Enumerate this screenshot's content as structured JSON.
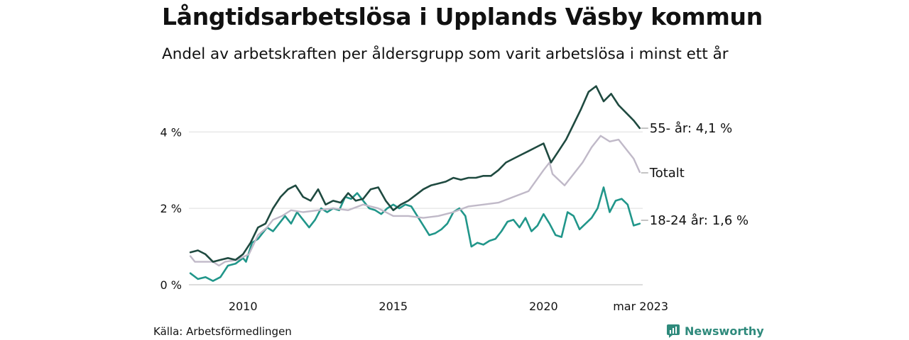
{
  "title": "Långtidsarbetslösa i Upplands Väsby kommun",
  "subtitle": "Andel av arbetskraften per åldersgrupp som varit arbetslösa i minst ett år",
  "source": "Källa: Arbetsförmedlingen",
  "brand": "Newsworthy",
  "colors": {
    "s55": "#1f4a40",
    "total": "#c0b9c8",
    "s1824": "#21968a",
    "grid": "#dddddd",
    "text": "#111111"
  },
  "chart_data": {
    "type": "line",
    "ylim": [
      0,
      5.6
    ],
    "xlim": [
      2008.2,
      2023.3
    ],
    "y_ticks": [
      0,
      2,
      4
    ],
    "y_tick_labels": [
      "0 %",
      "2 %",
      "4 %"
    ],
    "x_ticks": [
      2010,
      2015,
      2020,
      2023.2
    ],
    "x_tick_labels": [
      "2010",
      "2015",
      "2020",
      "mar 2023"
    ],
    "grid": "horizontal",
    "series": [
      {
        "key": "s1824",
        "name": "18-24 år",
        "end_label": "18-24 år: 1,6 %",
        "points": [
          [
            2008.25,
            0.3
          ],
          [
            2008.5,
            0.15
          ],
          [
            2008.75,
            0.2
          ],
          [
            2009.0,
            0.1
          ],
          [
            2009.25,
            0.2
          ],
          [
            2009.5,
            0.5
          ],
          [
            2009.75,
            0.55
          ],
          [
            2010.0,
            0.7
          ],
          [
            2010.1,
            0.6
          ],
          [
            2010.3,
            1.1
          ],
          [
            2010.5,
            1.2
          ],
          [
            2010.8,
            1.5
          ],
          [
            2011.0,
            1.4
          ],
          [
            2011.2,
            1.6
          ],
          [
            2011.4,
            1.8
          ],
          [
            2011.6,
            1.6
          ],
          [
            2011.8,
            1.9
          ],
          [
            2012.0,
            1.7
          ],
          [
            2012.2,
            1.5
          ],
          [
            2012.4,
            1.7
          ],
          [
            2012.6,
            2.0
          ],
          [
            2012.8,
            1.9
          ],
          [
            2013.0,
            2.0
          ],
          [
            2013.2,
            1.95
          ],
          [
            2013.4,
            2.3
          ],
          [
            2013.6,
            2.25
          ],
          [
            2013.8,
            2.4
          ],
          [
            2014.0,
            2.2
          ],
          [
            2014.2,
            2.0
          ],
          [
            2014.4,
            1.95
          ],
          [
            2014.6,
            1.85
          ],
          [
            2014.8,
            2.0
          ],
          [
            2015.0,
            2.1
          ],
          [
            2015.2,
            2.0
          ],
          [
            2015.4,
            2.1
          ],
          [
            2015.6,
            2.05
          ],
          [
            2015.8,
            1.8
          ],
          [
            2016.0,
            1.55
          ],
          [
            2016.2,
            1.3
          ],
          [
            2016.4,
            1.35
          ],
          [
            2016.6,
            1.45
          ],
          [
            2016.8,
            1.6
          ],
          [
            2017.0,
            1.9
          ],
          [
            2017.2,
            2.0
          ],
          [
            2017.4,
            1.8
          ],
          [
            2017.6,
            1.0
          ],
          [
            2017.8,
            1.1
          ],
          [
            2018.0,
            1.05
          ],
          [
            2018.2,
            1.15
          ],
          [
            2018.4,
            1.2
          ],
          [
            2018.6,
            1.4
          ],
          [
            2018.8,
            1.65
          ],
          [
            2019.0,
            1.7
          ],
          [
            2019.2,
            1.5
          ],
          [
            2019.4,
            1.75
          ],
          [
            2019.6,
            1.4
          ],
          [
            2019.8,
            1.55
          ],
          [
            2020.0,
            1.85
          ],
          [
            2020.2,
            1.6
          ],
          [
            2020.4,
            1.3
          ],
          [
            2020.6,
            1.25
          ],
          [
            2020.8,
            1.9
          ],
          [
            2021.0,
            1.8
          ],
          [
            2021.2,
            1.45
          ],
          [
            2021.4,
            1.6
          ],
          [
            2021.6,
            1.75
          ],
          [
            2021.8,
            2.0
          ],
          [
            2022.0,
            2.55
          ],
          [
            2022.2,
            1.9
          ],
          [
            2022.4,
            2.2
          ],
          [
            2022.6,
            2.25
          ],
          [
            2022.8,
            2.1
          ],
          [
            2023.0,
            1.55
          ],
          [
            2023.2,
            1.6
          ]
        ]
      },
      {
        "key": "total",
        "name": "Totalt",
        "end_label": "Totalt",
        "points": [
          [
            2008.25,
            0.75
          ],
          [
            2008.4,
            0.6
          ],
          [
            2009.0,
            0.6
          ],
          [
            2009.2,
            0.5
          ],
          [
            2009.4,
            0.6
          ],
          [
            2009.8,
            0.65
          ],
          [
            2010.2,
            0.8
          ],
          [
            2010.5,
            1.3
          ],
          [
            2010.8,
            1.5
          ],
          [
            2011.0,
            1.7
          ],
          [
            2011.3,
            1.8
          ],
          [
            2011.6,
            1.95
          ],
          [
            2012.0,
            1.9
          ],
          [
            2012.5,
            1.95
          ],
          [
            2013.0,
            2.0
          ],
          [
            2013.5,
            1.95
          ],
          [
            2014.0,
            2.1
          ],
          [
            2014.5,
            2.0
          ],
          [
            2015.0,
            1.8
          ],
          [
            2015.5,
            1.8
          ],
          [
            2016.0,
            1.75
          ],
          [
            2016.5,
            1.8
          ],
          [
            2017.0,
            1.9
          ],
          [
            2017.5,
            2.05
          ],
          [
            2018.0,
            2.1
          ],
          [
            2018.5,
            2.15
          ],
          [
            2019.0,
            2.3
          ],
          [
            2019.5,
            2.45
          ],
          [
            2020.0,
            3.0
          ],
          [
            2020.2,
            3.2
          ],
          [
            2020.3,
            2.9
          ],
          [
            2020.5,
            2.75
          ],
          [
            2020.7,
            2.6
          ],
          [
            2021.0,
            2.9
          ],
          [
            2021.3,
            3.2
          ],
          [
            2021.6,
            3.6
          ],
          [
            2021.9,
            3.9
          ],
          [
            2022.2,
            3.75
          ],
          [
            2022.5,
            3.8
          ],
          [
            2022.8,
            3.5
          ],
          [
            2023.0,
            3.3
          ],
          [
            2023.2,
            2.95
          ]
        ]
      },
      {
        "key": "s55",
        "name": "55- år",
        "end_label": "55- år: 4,1 %",
        "points": [
          [
            2008.25,
            0.85
          ],
          [
            2008.5,
            0.9
          ],
          [
            2008.75,
            0.8
          ],
          [
            2009.0,
            0.6
          ],
          [
            2009.25,
            0.65
          ],
          [
            2009.5,
            0.7
          ],
          [
            2009.75,
            0.65
          ],
          [
            2010.0,
            0.8
          ],
          [
            2010.25,
            1.1
          ],
          [
            2010.5,
            1.5
          ],
          [
            2010.75,
            1.6
          ],
          [
            2011.0,
            2.0
          ],
          [
            2011.25,
            2.3
          ],
          [
            2011.5,
            2.5
          ],
          [
            2011.75,
            2.6
          ],
          [
            2012.0,
            2.3
          ],
          [
            2012.25,
            2.2
          ],
          [
            2012.5,
            2.5
          ],
          [
            2012.75,
            2.1
          ],
          [
            2013.0,
            2.2
          ],
          [
            2013.25,
            2.15
          ],
          [
            2013.5,
            2.4
          ],
          [
            2013.75,
            2.2
          ],
          [
            2014.0,
            2.25
          ],
          [
            2014.25,
            2.5
          ],
          [
            2014.5,
            2.55
          ],
          [
            2014.75,
            2.2
          ],
          [
            2015.0,
            1.95
          ],
          [
            2015.25,
            2.1
          ],
          [
            2015.5,
            2.2
          ],
          [
            2015.75,
            2.35
          ],
          [
            2016.0,
            2.5
          ],
          [
            2016.25,
            2.6
          ],
          [
            2016.5,
            2.65
          ],
          [
            2016.75,
            2.7
          ],
          [
            2017.0,
            2.8
          ],
          [
            2017.25,
            2.75
          ],
          [
            2017.5,
            2.8
          ],
          [
            2017.75,
            2.8
          ],
          [
            2018.0,
            2.85
          ],
          [
            2018.25,
            2.85
          ],
          [
            2018.5,
            3.0
          ],
          [
            2018.75,
            3.2
          ],
          [
            2019.0,
            3.3
          ],
          [
            2019.25,
            3.4
          ],
          [
            2019.5,
            3.5
          ],
          [
            2019.75,
            3.6
          ],
          [
            2020.0,
            3.7
          ],
          [
            2020.25,
            3.2
          ],
          [
            2020.5,
            3.5
          ],
          [
            2020.75,
            3.8
          ],
          [
            2021.0,
            4.2
          ],
          [
            2021.25,
            4.6
          ],
          [
            2021.5,
            5.05
          ],
          [
            2021.75,
            5.2
          ],
          [
            2022.0,
            4.8
          ],
          [
            2022.25,
            5.0
          ],
          [
            2022.5,
            4.7
          ],
          [
            2022.75,
            4.5
          ],
          [
            2023.0,
            4.3
          ],
          [
            2023.2,
            4.1
          ]
        ]
      }
    ]
  }
}
